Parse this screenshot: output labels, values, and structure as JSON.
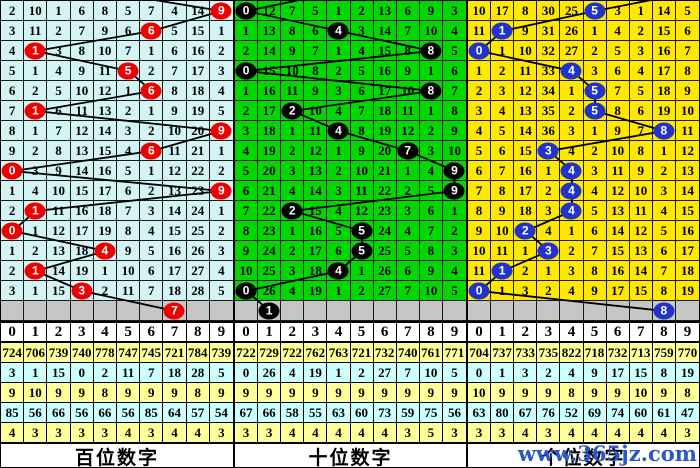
{
  "watermark": {
    "text": "www.365jz.com",
    "color": "#2b57c8"
  },
  "chart_data": {
    "type": "table",
    "description": "3D lottery digit trend chart: 16 draw rows x 10 digit columns per panel; circled cell = drawn digit, other cells = miss counts; last gray row = pending/prediction; bottom = per-digit statistics.",
    "digits": [
      "0",
      "1",
      "2",
      "3",
      "4",
      "5",
      "6",
      "7",
      "8",
      "9"
    ],
    "stats_row_colors": [
      "#ffff99",
      "#ccffff",
      "#ffff99",
      "#ccffff",
      "#ffff99"
    ],
    "pending_row_color": "#c6c6c6",
    "panels": [
      {
        "id": "hundreds",
        "footer_label": "百位数字",
        "colors": {
          "cell": "#d4f3f3",
          "circle": "#ee0000"
        },
        "stub": [
          148,
          -2
        ],
        "rows": [
          [
            "2",
            "10",
            "1",
            "6",
            "8",
            "5",
            "7",
            "4",
            "14",
            "9"
          ],
          [
            "3",
            "11",
            "2",
            "7",
            "9",
            "6",
            "6",
            "5",
            "15",
            "1"
          ],
          [
            "4",
            "1",
            "3",
            "8",
            "10",
            "7",
            "1",
            "6",
            "16",
            "2"
          ],
          [
            "5",
            "1",
            "4",
            "9",
            "11",
            "5",
            "2",
            "7",
            "17",
            "3"
          ],
          [
            "6",
            "2",
            "5",
            "10",
            "12",
            "1",
            "6",
            "8",
            "18",
            "4"
          ],
          [
            "7",
            "1",
            "6",
            "11",
            "13",
            "2",
            "1",
            "9",
            "19",
            "5"
          ],
          [
            "8",
            "1",
            "7",
            "12",
            "14",
            "3",
            "2",
            "10",
            "20",
            "9"
          ],
          [
            "9",
            "2",
            "8",
            "13",
            "15",
            "4",
            "6",
            "11",
            "21",
            "1"
          ],
          [
            "0",
            "3",
            "9",
            "14",
            "16",
            "5",
            "1",
            "12",
            "22",
            "2"
          ],
          [
            "1",
            "4",
            "10",
            "15",
            "17",
            "6",
            "2",
            "13",
            "23",
            "9"
          ],
          [
            "2",
            "1",
            "11",
            "16",
            "18",
            "7",
            "3",
            "14",
            "24",
            "1"
          ],
          [
            "0",
            "1",
            "12",
            "17",
            "19",
            "8",
            "4",
            "15",
            "25",
            "2"
          ],
          [
            "1",
            "2",
            "13",
            "18",
            "4",
            "9",
            "5",
            "16",
            "26",
            "3"
          ],
          [
            "2",
            "1",
            "14",
            "19",
            "1",
            "10",
            "6",
            "17",
            "27",
            "4"
          ],
          [
            "3",
            "1",
            "15",
            "3",
            "2",
            "11",
            "7",
            "18",
            "28",
            "5"
          ]
        ],
        "hits": [
          9,
          6,
          1,
          5,
          6,
          1,
          9,
          6,
          0,
          9,
          1,
          0,
          4,
          1,
          3,
          7
        ],
        "stats": [
          [
            "724",
            "706",
            "739",
            "740",
            "778",
            "747",
            "745",
            "721",
            "784",
            "739"
          ],
          [
            "3",
            "1",
            "15",
            "0",
            "2",
            "11",
            "7",
            "18",
            "28",
            "5"
          ],
          [
            "9",
            "10",
            "9",
            "9",
            "8",
            "9",
            "9",
            "9",
            "8",
            "9"
          ],
          [
            "85",
            "56",
            "66",
            "56",
            "66",
            "56",
            "85",
            "64",
            "57",
            "54"
          ],
          [
            "4",
            "3",
            "3",
            "3",
            "3",
            "4",
            "3",
            "4",
            "4",
            "3"
          ]
        ]
      },
      {
        "id": "tens",
        "footer_label": "十位数字",
        "colors": {
          "cell": "#00d800",
          "circle": "#000000"
        },
        "stub": [
          70,
          -2
        ],
        "rows": [
          [
            "0",
            "12",
            "7",
            "5",
            "1",
            "2",
            "13",
            "6",
            "9",
            "3"
          ],
          [
            "1",
            "13",
            "8",
            "6",
            "4",
            "3",
            "14",
            "7",
            "10",
            "4"
          ],
          [
            "2",
            "14",
            "9",
            "7",
            "1",
            "4",
            "15",
            "8",
            "8",
            "5"
          ],
          [
            "0",
            "15",
            "10",
            "8",
            "2",
            "5",
            "16",
            "9",
            "1",
            "6"
          ],
          [
            "1",
            "16",
            "11",
            "9",
            "3",
            "6",
            "17",
            "10",
            "8",
            "7"
          ],
          [
            "2",
            "17",
            "2",
            "10",
            "4",
            "7",
            "18",
            "11",
            "1",
            "8"
          ],
          [
            "3",
            "18",
            "1",
            "11",
            "4",
            "8",
            "19",
            "12",
            "2",
            "9"
          ],
          [
            "4",
            "19",
            "2",
            "12",
            "1",
            "9",
            "20",
            "7",
            "3",
            "10"
          ],
          [
            "5",
            "20",
            "3",
            "13",
            "2",
            "10",
            "21",
            "1",
            "4",
            "9"
          ],
          [
            "6",
            "21",
            "4",
            "14",
            "3",
            "11",
            "22",
            "2",
            "5",
            "9"
          ],
          [
            "7",
            "22",
            "2",
            "15",
            "4",
            "12",
            "23",
            "3",
            "6",
            "1"
          ],
          [
            "8",
            "23",
            "1",
            "16",
            "5",
            "5",
            "24",
            "4",
            "7",
            "2"
          ],
          [
            "9",
            "24",
            "2",
            "17",
            "6",
            "5",
            "25",
            "5",
            "8",
            "3"
          ],
          [
            "10",
            "25",
            "3",
            "18",
            "4",
            "1",
            "26",
            "6",
            "9",
            "4"
          ],
          [
            "0",
            "26",
            "4",
            "19",
            "1",
            "2",
            "27",
            "7",
            "10",
            "5"
          ]
        ],
        "hits": [
          0,
          4,
          8,
          0,
          8,
          2,
          4,
          7,
          9,
          9,
          2,
          5,
          5,
          4,
          0,
          1
        ],
        "stats": [
          [
            "722",
            "729",
            "722",
            "762",
            "763",
            "721",
            "732",
            "740",
            "761",
            "771"
          ],
          [
            "0",
            "26",
            "4",
            "19",
            "1",
            "2",
            "27",
            "7",
            "10",
            "5"
          ],
          [
            "9",
            "9",
            "9",
            "9",
            "9",
            "9",
            "9",
            "9",
            "9",
            "9"
          ],
          [
            "67",
            "66",
            "58",
            "55",
            "63",
            "60",
            "73",
            "59",
            "75",
            "56"
          ],
          [
            "3",
            "3",
            "4",
            "4",
            "4",
            "4",
            "4",
            "3",
            "5",
            "3"
          ]
        ]
      },
      {
        "id": "units",
        "footer_label": "个位数字",
        "colors": {
          "cell": "#ffe800",
          "circle": "#2233cc"
        },
        "stub": [
          190,
          -2
        ],
        "rows": [
          [
            "10",
            "17",
            "8",
            "30",
            "25",
            "5",
            "3",
            "1",
            "14",
            "5"
          ],
          [
            "11",
            "1",
            "9",
            "31",
            "26",
            "1",
            "4",
            "2",
            "15",
            "6"
          ],
          [
            "0",
            "1",
            "10",
            "32",
            "27",
            "2",
            "5",
            "3",
            "16",
            "7"
          ],
          [
            "1",
            "2",
            "11",
            "33",
            "4",
            "3",
            "6",
            "4",
            "17",
            "8"
          ],
          [
            "2",
            "3",
            "12",
            "34",
            "1",
            "5",
            "7",
            "5",
            "18",
            "9"
          ],
          [
            "3",
            "4",
            "13",
            "35",
            "2",
            "5",
            "8",
            "6",
            "19",
            "10"
          ],
          [
            "4",
            "5",
            "14",
            "36",
            "3",
            "1",
            "9",
            "7",
            "8",
            "11"
          ],
          [
            "5",
            "6",
            "15",
            "3",
            "4",
            "2",
            "10",
            "8",
            "1",
            "12"
          ],
          [
            "6",
            "7",
            "16",
            "1",
            "4",
            "3",
            "11",
            "9",
            "2",
            "13"
          ],
          [
            "7",
            "8",
            "17",
            "2",
            "4",
            "4",
            "12",
            "10",
            "3",
            "14"
          ],
          [
            "8",
            "9",
            "18",
            "3",
            "4",
            "5",
            "13",
            "11",
            "4",
            "15"
          ],
          [
            "9",
            "10",
            "2",
            "4",
            "1",
            "6",
            "14",
            "12",
            "5",
            "16"
          ],
          [
            "10",
            "11",
            "1",
            "3",
            "2",
            "7",
            "15",
            "13",
            "6",
            "17"
          ],
          [
            "11",
            "1",
            "2",
            "1",
            "3",
            "8",
            "16",
            "14",
            "7",
            "18"
          ],
          [
            "0",
            "1",
            "3",
            "2",
            "4",
            "9",
            "17",
            "15",
            "8",
            "19"
          ]
        ],
        "hits": [
          5,
          1,
          0,
          4,
          5,
          5,
          8,
          3,
          4,
          4,
          4,
          2,
          3,
          1,
          0,
          8
        ],
        "stats": [
          [
            "704",
            "737",
            "733",
            "735",
            "822",
            "718",
            "732",
            "713",
            "759",
            "770"
          ],
          [
            "0",
            "1",
            "3",
            "2",
            "4",
            "9",
            "17",
            "15",
            "8",
            "19"
          ],
          [
            "10",
            "9",
            "9",
            "9",
            "8",
            "9",
            "9",
            "10",
            "9",
            "8"
          ],
          [
            "63",
            "80",
            "67",
            "76",
            "52",
            "69",
            "74",
            "60",
            "61",
            "47"
          ],
          [
            "3",
            "3",
            "4",
            "3",
            "4",
            "4",
            "4",
            "4",
            "4",
            "3"
          ]
        ]
      }
    ]
  }
}
